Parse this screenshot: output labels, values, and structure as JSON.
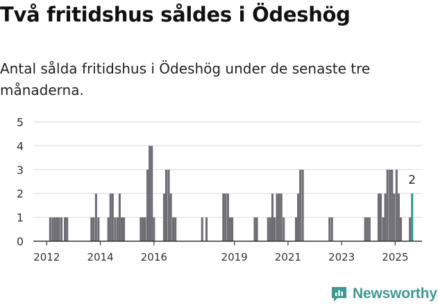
{
  "header": {
    "title": "Två fritidshus såldes i Ödeshög",
    "subtitle": "Antal sålda fritidshus i Ödeshög under de senaste tre månaderna."
  },
  "brand": {
    "name": "Newsworthy",
    "icon": "newsworthy-logo-icon",
    "color": "#3e9a91"
  },
  "colors": {
    "bar": "#6e6d74",
    "highlight": "#2a9d90",
    "grid": "#d9d9d9",
    "axis": "#333333"
  },
  "chart_data": {
    "type": "bar",
    "ylim": [
      0,
      5
    ],
    "yticks": [
      0,
      1,
      2,
      3,
      4,
      5
    ],
    "xlim": [
      2011.5,
      2026.0
    ],
    "xticks": [
      {
        "value": 2012,
        "label": "2012"
      },
      {
        "value": 2014,
        "label": "2014"
      },
      {
        "value": 2016,
        "label": "2016"
      },
      {
        "value": 2019,
        "label": "2019"
      },
      {
        "value": 2021,
        "label": "2021"
      },
      {
        "value": 2023,
        "label": "2023"
      },
      {
        "value": 2025,
        "label": "2025"
      }
    ],
    "grid": true,
    "bar_width": 0.08,
    "bars": [
      {
        "x": 2012.13,
        "value": 1
      },
      {
        "x": 2012.22,
        "value": 1
      },
      {
        "x": 2012.3,
        "value": 1
      },
      {
        "x": 2012.38,
        "value": 1
      },
      {
        "x": 2012.46,
        "value": 1
      },
      {
        "x": 2012.55,
        "value": 1
      },
      {
        "x": 2012.68,
        "value": 1
      },
      {
        "x": 2012.76,
        "value": 1
      },
      {
        "x": 2013.67,
        "value": 1
      },
      {
        "x": 2013.75,
        "value": 1
      },
      {
        "x": 2013.84,
        "value": 2
      },
      {
        "x": 2013.93,
        "value": 1
      },
      {
        "x": 2014.3,
        "value": 1
      },
      {
        "x": 2014.38,
        "value": 2
      },
      {
        "x": 2014.46,
        "value": 2
      },
      {
        "x": 2014.55,
        "value": 1
      },
      {
        "x": 2014.64,
        "value": 1
      },
      {
        "x": 2014.72,
        "value": 2
      },
      {
        "x": 2014.8,
        "value": 1
      },
      {
        "x": 2014.88,
        "value": 1
      },
      {
        "x": 2015.51,
        "value": 1
      },
      {
        "x": 2015.59,
        "value": 1
      },
      {
        "x": 2015.67,
        "value": 1
      },
      {
        "x": 2015.76,
        "value": 3
      },
      {
        "x": 2015.84,
        "value": 4
      },
      {
        "x": 2015.92,
        "value": 4
      },
      {
        "x": 2016.0,
        "value": 1
      },
      {
        "x": 2016.38,
        "value": 2
      },
      {
        "x": 2016.46,
        "value": 3
      },
      {
        "x": 2016.55,
        "value": 3
      },
      {
        "x": 2016.63,
        "value": 2
      },
      {
        "x": 2016.72,
        "value": 1
      },
      {
        "x": 2016.8,
        "value": 1
      },
      {
        "x": 2017.8,
        "value": 1
      },
      {
        "x": 2017.96,
        "value": 1
      },
      {
        "x": 2018.59,
        "value": 2
      },
      {
        "x": 2018.67,
        "value": 2
      },
      {
        "x": 2018.76,
        "value": 2
      },
      {
        "x": 2018.84,
        "value": 1
      },
      {
        "x": 2018.92,
        "value": 1
      },
      {
        "x": 2019.76,
        "value": 1
      },
      {
        "x": 2019.84,
        "value": 1
      },
      {
        "x": 2020.26,
        "value": 1
      },
      {
        "x": 2020.34,
        "value": 1
      },
      {
        "x": 2020.42,
        "value": 2
      },
      {
        "x": 2020.5,
        "value": 1
      },
      {
        "x": 2020.59,
        "value": 2
      },
      {
        "x": 2020.67,
        "value": 2
      },
      {
        "x": 2020.75,
        "value": 2
      },
      {
        "x": 2020.84,
        "value": 1
      },
      {
        "x": 2021.3,
        "value": 1
      },
      {
        "x": 2021.38,
        "value": 2
      },
      {
        "x": 2021.46,
        "value": 3
      },
      {
        "x": 2021.55,
        "value": 3
      },
      {
        "x": 2022.55,
        "value": 1
      },
      {
        "x": 2022.64,
        "value": 1
      },
      {
        "x": 2023.88,
        "value": 1
      },
      {
        "x": 2023.96,
        "value": 1
      },
      {
        "x": 2024.04,
        "value": 1
      },
      {
        "x": 2024.38,
        "value": 2
      },
      {
        "x": 2024.46,
        "value": 2
      },
      {
        "x": 2024.55,
        "value": 1
      },
      {
        "x": 2024.63,
        "value": 2
      },
      {
        "x": 2024.71,
        "value": 3
      },
      {
        "x": 2024.8,
        "value": 3
      },
      {
        "x": 2024.88,
        "value": 3
      },
      {
        "x": 2024.96,
        "value": 2
      },
      {
        "x": 2025.05,
        "value": 3
      },
      {
        "x": 2025.13,
        "value": 2
      },
      {
        "x": 2025.21,
        "value": 1
      },
      {
        "x": 2025.55,
        "value": 1
      },
      {
        "x": 2025.63,
        "value": 2,
        "highlight": true,
        "label": "2"
      }
    ]
  }
}
